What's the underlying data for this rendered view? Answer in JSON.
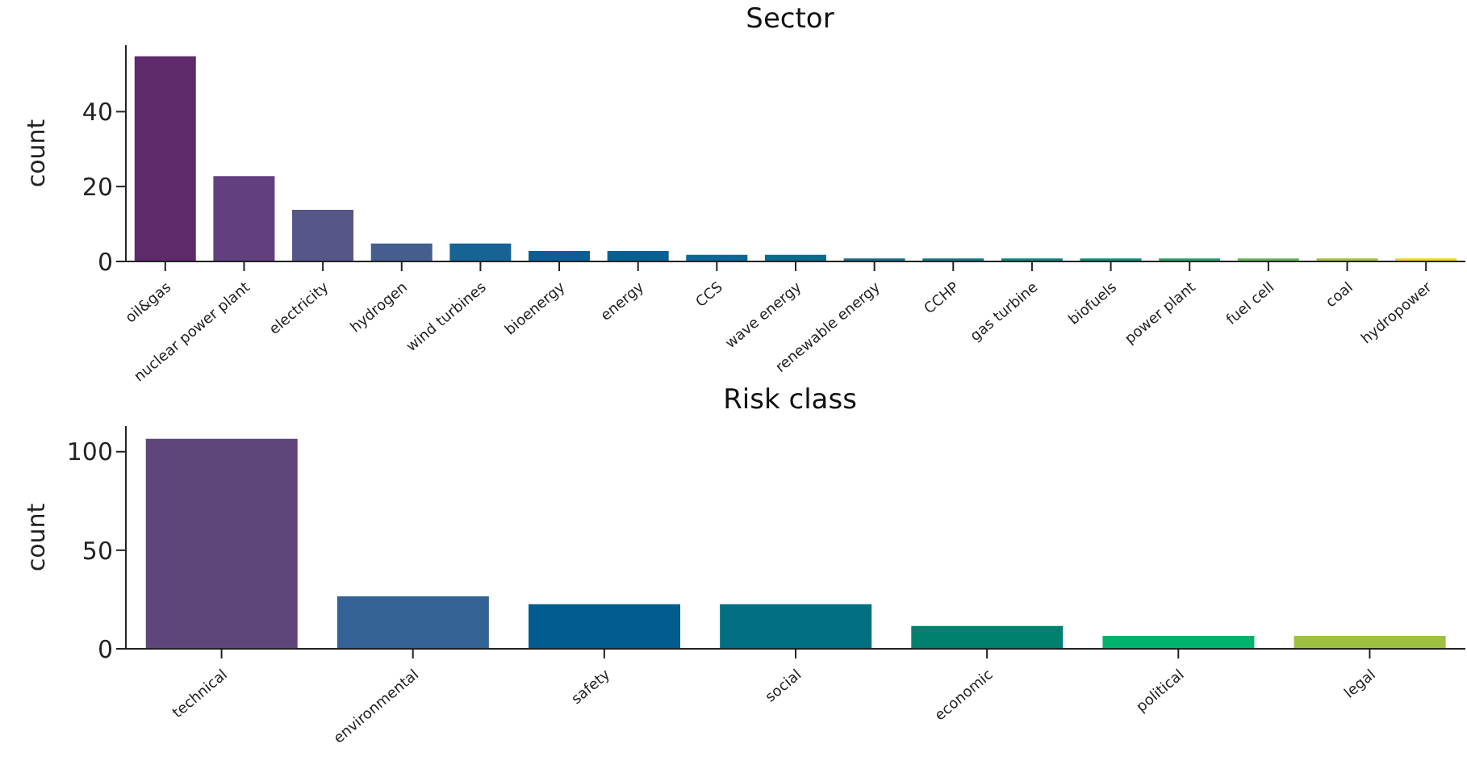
{
  "chart_data": [
    {
      "type": "bar",
      "title": "Sector",
      "ylabel": "count",
      "categories": [
        "oil&gas",
        "nuclear power plant",
        "electricity",
        "hydrogen",
        "wind turbines",
        "bioenergy",
        "energy",
        "CCS",
        "wave energy",
        "renewable energy",
        "CCHP",
        "gas turbine",
        "biofuels",
        "power plant",
        "fuel cell",
        "coal",
        "hydropower"
      ],
      "values": [
        55,
        23,
        14,
        5,
        5,
        3,
        3,
        2,
        2,
        1,
        1,
        1,
        1,
        1,
        1,
        1,
        1
      ],
      "colors": [
        "#5f2a6b",
        "#633f80",
        "#565689",
        "#455e8e",
        "#166394",
        "#0c5f96",
        "#076093",
        "#0b6896",
        "#0a6a8c",
        "#186e8a",
        "#107985",
        "#0a8580",
        "#07927a",
        "#23a36a",
        "#62b654",
        "#a5c137",
        "#f2d61f"
      ],
      "ylim": [
        0,
        57.75
      ],
      "yticks": [
        0,
        20,
        40
      ],
      "grid": false
    },
    {
      "type": "bar",
      "title": "Risk class",
      "ylabel": "count",
      "categories": [
        "technical",
        "environmental",
        "safety",
        "social",
        "economic",
        "political",
        "legal"
      ],
      "values": [
        107,
        27,
        23,
        23,
        12,
        7,
        7
      ],
      "colors": [
        "#5e467a",
        "#336294",
        "#005b8f",
        "#006f80",
        "#00806f",
        "#00b36b",
        "#9dc043"
      ],
      "ylim": [
        0,
        113
      ],
      "yticks": [
        0,
        50,
        100
      ],
      "grid": false
    }
  ]
}
